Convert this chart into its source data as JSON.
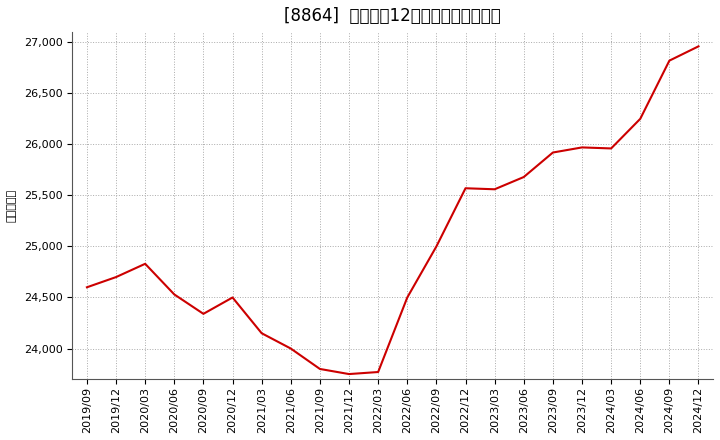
{
  "title": "[8864]  売上高の12か月移動合計の推移",
  "ylabel": "（百万円）",
  "line_color": "#cc0000",
  "background_color": "#ffffff",
  "plot_bg_color": "#ffffff",
  "grid_color": "#aaaaaa",
  "ylim": [
    23700,
    27100
  ],
  "yticks": [
    24000,
    24500,
    25000,
    25500,
    26000,
    26500,
    27000
  ],
  "dates": [
    "2019/09",
    "2019/12",
    "2020/03",
    "2020/06",
    "2020/09",
    "2020/12",
    "2021/03",
    "2021/06",
    "2021/09",
    "2021/12",
    "2022/03",
    "2022/06",
    "2022/09",
    "2022/12",
    "2023/03",
    "2023/06",
    "2023/09",
    "2023/12",
    "2024/03",
    "2024/06",
    "2024/09",
    "2024/12"
  ],
  "values": [
    24600,
    24700,
    24830,
    24530,
    24340,
    24500,
    24150,
    24000,
    23800,
    23750,
    23770,
    24500,
    25000,
    25570,
    25560,
    25680,
    25920,
    25970,
    25960,
    26250,
    26820,
    26960
  ],
  "title_fontsize": 12,
  "tick_fontsize": 8,
  "ylabel_fontsize": 8,
  "line_width": 1.5
}
